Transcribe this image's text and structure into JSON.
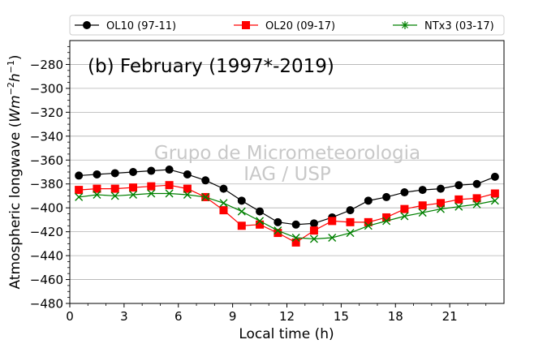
{
  "chart_data": {
    "type": "line",
    "title": "(b) February (1997*-2019)",
    "xlabel": "Local time (h)",
    "ylabel": "Atmospheric longwave (Wm⁻²h⁻¹)",
    "watermark": [
      "Grupo de Micrometeorologia",
      "IAG / USP"
    ],
    "xlim": [
      0,
      24
    ],
    "ylim": [
      -480,
      -260
    ],
    "xticks": [
      0,
      3,
      6,
      9,
      12,
      15,
      18,
      21
    ],
    "yticks": [
      -480,
      -460,
      -440,
      -420,
      -400,
      -380,
      -360,
      -340,
      -320,
      -300,
      -280
    ],
    "grid": "horizontal",
    "legend_position": "top",
    "x": [
      0.5,
      1.5,
      2.5,
      3.5,
      4.5,
      5.5,
      6.5,
      7.5,
      8.5,
      9.5,
      10.5,
      11.5,
      12.5,
      13.5,
      14.5,
      15.5,
      16.5,
      17.5,
      18.5,
      19.5,
      20.5,
      21.5,
      22.5,
      23.5
    ],
    "series": [
      {
        "name": "OL10 (97-11)",
        "color": "#000000",
        "marker": "circle",
        "values": [
          -373,
          -372,
          -371,
          -370,
          -369,
          -368,
          -372,
          -377,
          -384,
          -394,
          -403,
          -412,
          -414,
          -413,
          -408,
          -402,
          -394,
          -391,
          -387,
          -385,
          -384,
          -381,
          -380,
          -374
        ]
      },
      {
        "name": "OL20 (09-17)",
        "color": "#ff0000",
        "marker": "square",
        "values": [
          -385,
          -384,
          -384,
          -383,
          -382,
          -381,
          -384,
          -391,
          -402,
          -415,
          -414,
          -421,
          -429,
          -419,
          -411,
          -412,
          -412,
          -408,
          -401,
          -398,
          -396,
          -393,
          -392,
          -388
        ]
      },
      {
        "name": "NTx3 (03-17)",
        "color": "#008000",
        "marker": "x",
        "values": [
          -391,
          -389,
          -390,
          -389,
          -388,
          -388,
          -389,
          -391,
          -396,
          -403,
          -411,
          -419,
          -425,
          -426,
          -425,
          -421,
          -415,
          -411,
          -407,
          -404,
          -401,
          -399,
          -397,
          -394
        ]
      }
    ]
  }
}
